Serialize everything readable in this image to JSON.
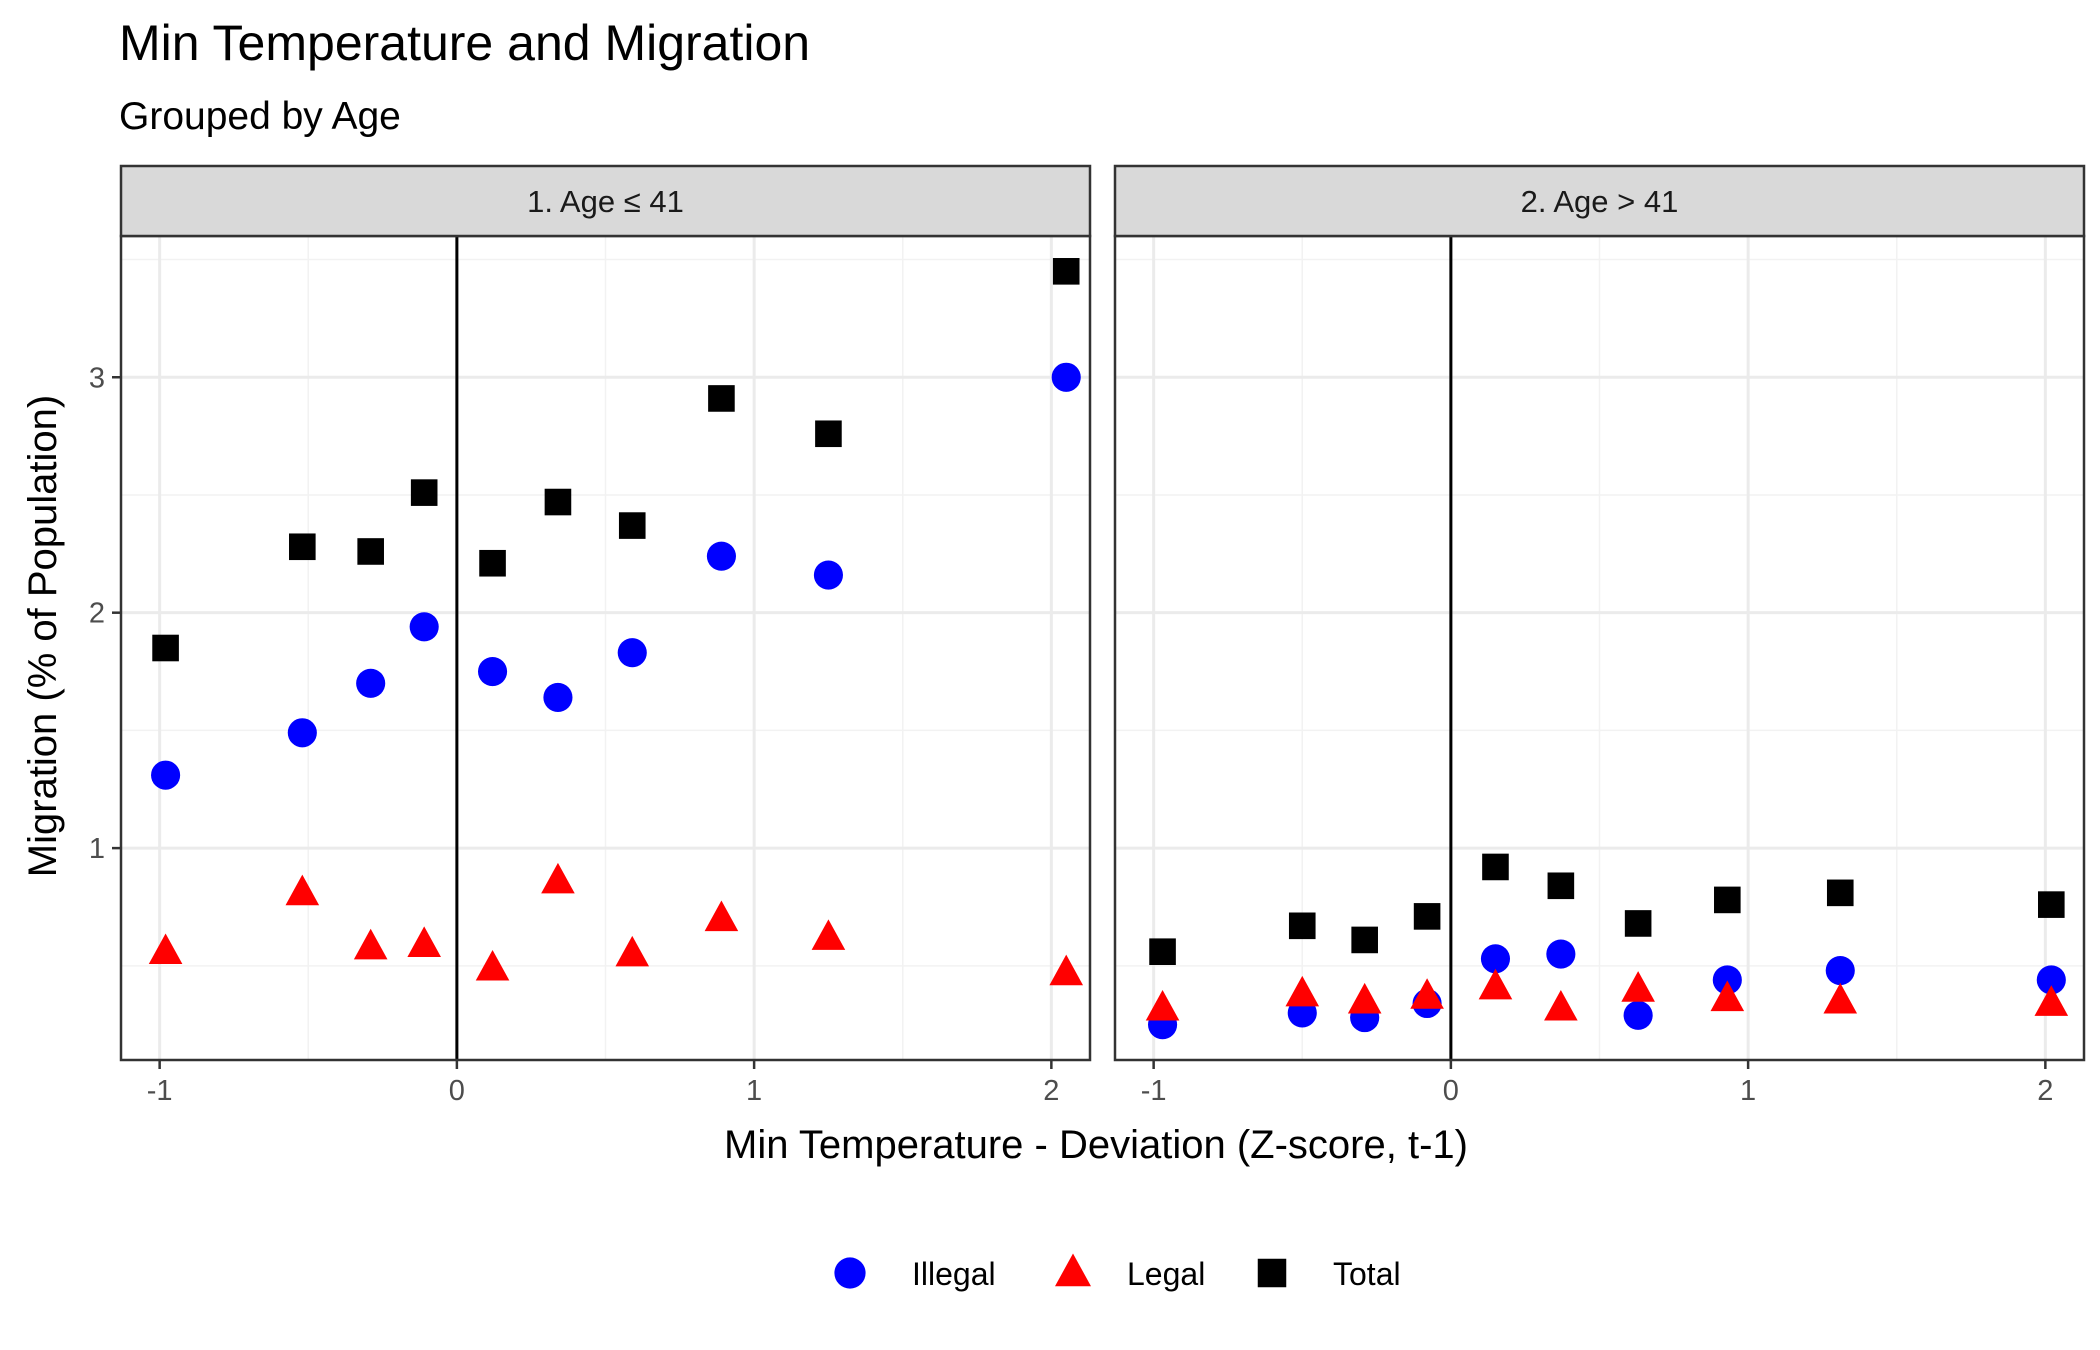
{
  "chart_data": {
    "type": "scatter",
    "title": "Min Temperature and Migration",
    "subtitle": "Grouped by Age",
    "xlabel": "Min Temperature - Deviation (Z-score, t-1)",
    "ylabel": "Migration (% of Population)",
    "xlim": [
      -1.13,
      2.13
    ],
    "ylim": [
      0.1,
      3.6
    ],
    "x_ticks": [
      -1,
      0,
      1,
      2
    ],
    "x_tick_labels": [
      "-1",
      "0",
      "1",
      "2"
    ],
    "y_ticks": [
      1,
      2,
      3
    ],
    "y_tick_labels": [
      "1",
      "2",
      "3"
    ],
    "vline_x": 0,
    "grid": true,
    "legend_position": "bottom",
    "legend": [
      {
        "name": "Illegal",
        "color": "#0000ff",
        "shape": "circle"
      },
      {
        "name": "Legal",
        "color": "#ff0000",
        "shape": "triangle"
      },
      {
        "name": "Total",
        "color": "#000000",
        "shape": "square"
      }
    ],
    "panels": [
      {
        "label": "1. Age ≤ 41",
        "x": [
          -0.98,
          -0.52,
          -0.29,
          -0.11,
          0.12,
          0.34,
          0.59,
          0.89,
          1.25,
          2.05
        ],
        "series": [
          {
            "name": "Illegal",
            "values": [
              1.31,
              1.49,
              1.7,
              1.94,
              1.75,
              1.64,
              1.83,
              2.24,
              2.16,
              3.0
            ]
          },
          {
            "name": "Legal",
            "values": [
              0.56,
              0.81,
              0.58,
              0.59,
              0.49,
              0.86,
              0.55,
              0.7,
              0.62,
              0.47
            ]
          },
          {
            "name": "Total",
            "values": [
              1.85,
              2.28,
              2.26,
              2.51,
              2.21,
              2.47,
              2.37,
              2.91,
              2.76,
              3.45
            ]
          }
        ]
      },
      {
        "label": "2. Age > 41",
        "x": [
          -0.97,
          -0.5,
          -0.29,
          -0.08,
          0.15,
          0.37,
          0.63,
          0.93,
          1.31,
          2.02
        ],
        "series": [
          {
            "name": "Illegal",
            "values": [
              0.25,
              0.3,
              0.28,
              0.34,
              0.53,
              0.55,
              0.29,
              0.44,
              0.48,
              0.44
            ]
          },
          {
            "name": "Legal",
            "values": [
              0.32,
              0.38,
              0.35,
              0.37,
              0.41,
              0.32,
              0.4,
              0.36,
              0.35,
              0.34
            ]
          },
          {
            "name": "Total",
            "values": [
              0.56,
              0.67,
              0.61,
              0.71,
              0.92,
              0.84,
              0.68,
              0.78,
              0.81,
              0.76
            ]
          }
        ]
      }
    ]
  }
}
